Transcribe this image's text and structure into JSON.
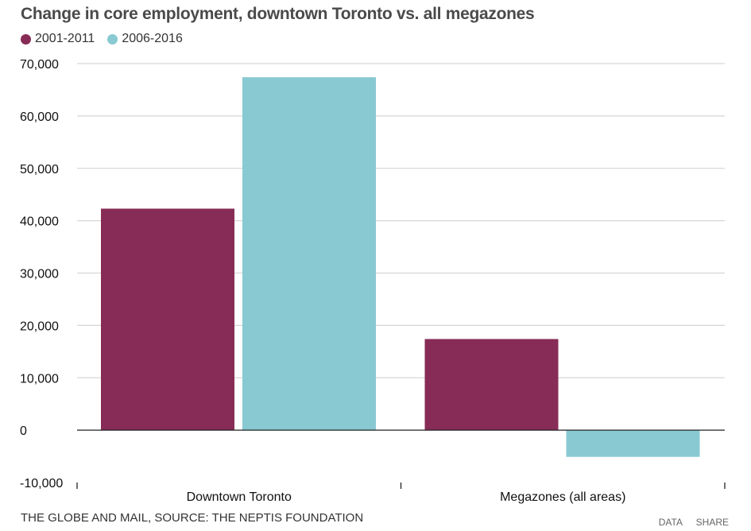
{
  "title": "Change in core employment, downtown Toronto vs. all megazones",
  "source": "THE GLOBE AND MAIL, SOURCE: THE NEPTIS FOUNDATION",
  "links": {
    "data": "DATA",
    "share": "SHARE"
  },
  "colors": {
    "series1": "#872c56",
    "series2": "#89c9d2",
    "grid": "#d6d6d6",
    "axis": "#222222"
  },
  "chart_data": {
    "type": "bar",
    "categories": [
      "Downtown Toronto",
      "Megazones (all areas)"
    ],
    "series": [
      {
        "name": "2001-2011",
        "values": [
          42300,
          17400
        ]
      },
      {
        "name": "2006-2016",
        "values": [
          67400,
          -5100
        ]
      }
    ],
    "ylim": [
      -10000,
      70000
    ],
    "yticks": [
      -10000,
      0,
      10000,
      20000,
      30000,
      40000,
      50000,
      60000,
      70000
    ],
    "ytick_labels": [
      "-10,000",
      "0",
      "10,000",
      "20,000",
      "30,000",
      "40,000",
      "50,000",
      "60,000",
      "70,000"
    ],
    "grid": true,
    "legend": "top-left"
  }
}
